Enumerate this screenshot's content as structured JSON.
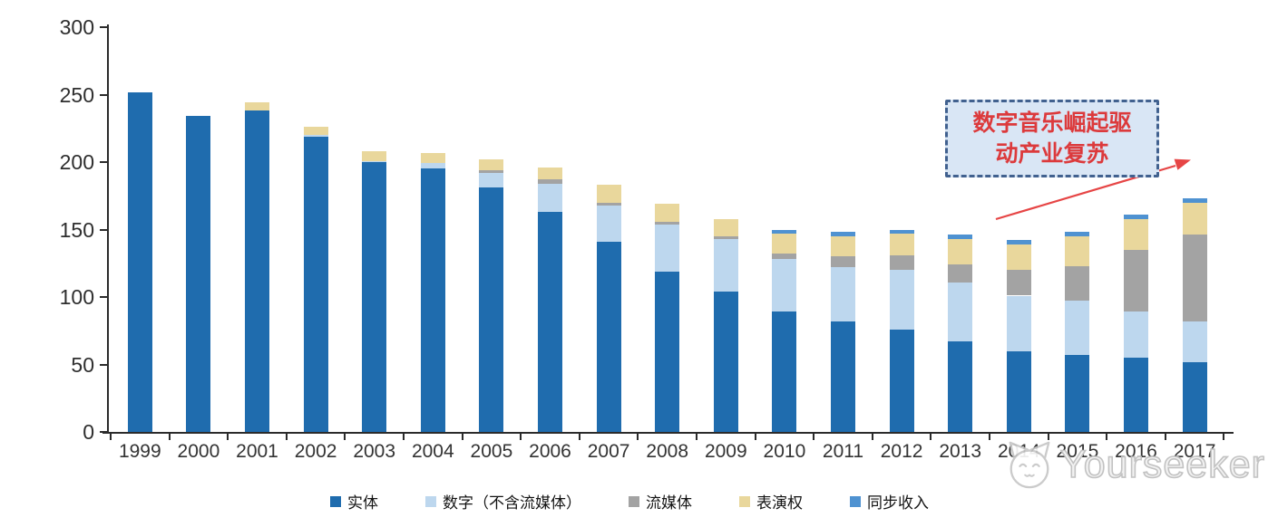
{
  "chart_data": {
    "type": "bar",
    "stacked": true,
    "title": "",
    "xlabel": "",
    "ylabel": "",
    "grid": false,
    "legend_position": "bottom",
    "ylim": [
      0,
      300
    ],
    "yticks": [
      0,
      50,
      100,
      150,
      200,
      250,
      300
    ],
    "categories": [
      "1999",
      "2000",
      "2001",
      "2002",
      "2003",
      "2004",
      "2005",
      "2006",
      "2007",
      "2008",
      "2009",
      "2010",
      "2011",
      "2012",
      "2013",
      "2014",
      "2015",
      "2016",
      "2017"
    ],
    "series": [
      {
        "name": "实体",
        "color": "#1f6cae",
        "values": [
          252,
          234,
          238,
          219,
          200,
          195,
          181,
          163,
          141,
          119,
          104,
          89,
          82,
          76,
          67,
          60,
          57,
          55,
          52
        ]
      },
      {
        "name": "数字（不含流媒体）",
        "color": "#bdd7ee",
        "values": [
          0,
          0,
          0,
          1,
          1,
          4,
          11,
          21,
          27,
          35,
          39,
          39,
          40,
          44,
          44,
          41,
          40,
          34,
          30
        ]
      },
      {
        "name": "流媒体",
        "color": "#a3a3a3",
        "values": [
          0,
          0,
          0,
          0,
          0,
          0,
          2,
          3,
          2,
          2,
          2,
          4,
          8,
          11,
          13,
          19,
          26,
          46,
          64
        ]
      },
      {
        "name": "表演权",
        "color": "#e9d79c",
        "values": [
          0,
          0,
          6,
          6,
          7,
          8,
          8,
          9,
          13,
          13,
          13,
          15,
          15,
          16,
          19,
          19,
          22,
          23,
          24
        ]
      },
      {
        "name": "同步收入",
        "color": "#4f92d1",
        "values": [
          0,
          0,
          0,
          0,
          0,
          0,
          0,
          0,
          0,
          0,
          0,
          3,
          3,
          3,
          3,
          3,
          3,
          3,
          3
        ]
      }
    ]
  },
  "annotation": {
    "text": "数字音乐崛起驱动产业复苏",
    "lines": [
      "数字音乐崛起驱",
      "动产业复苏"
    ],
    "text_color": "#dc3a3c",
    "box_border_color": "#41618f",
    "box_fill_color": "#d9e6f5",
    "arrow_color": "#e64545"
  },
  "watermark": {
    "text": "Yourseeker",
    "logo": "cat-logo",
    "color": "#c2c2c2"
  },
  "axis": {
    "color": "#2b2b2b",
    "label_color": "#333333"
  }
}
